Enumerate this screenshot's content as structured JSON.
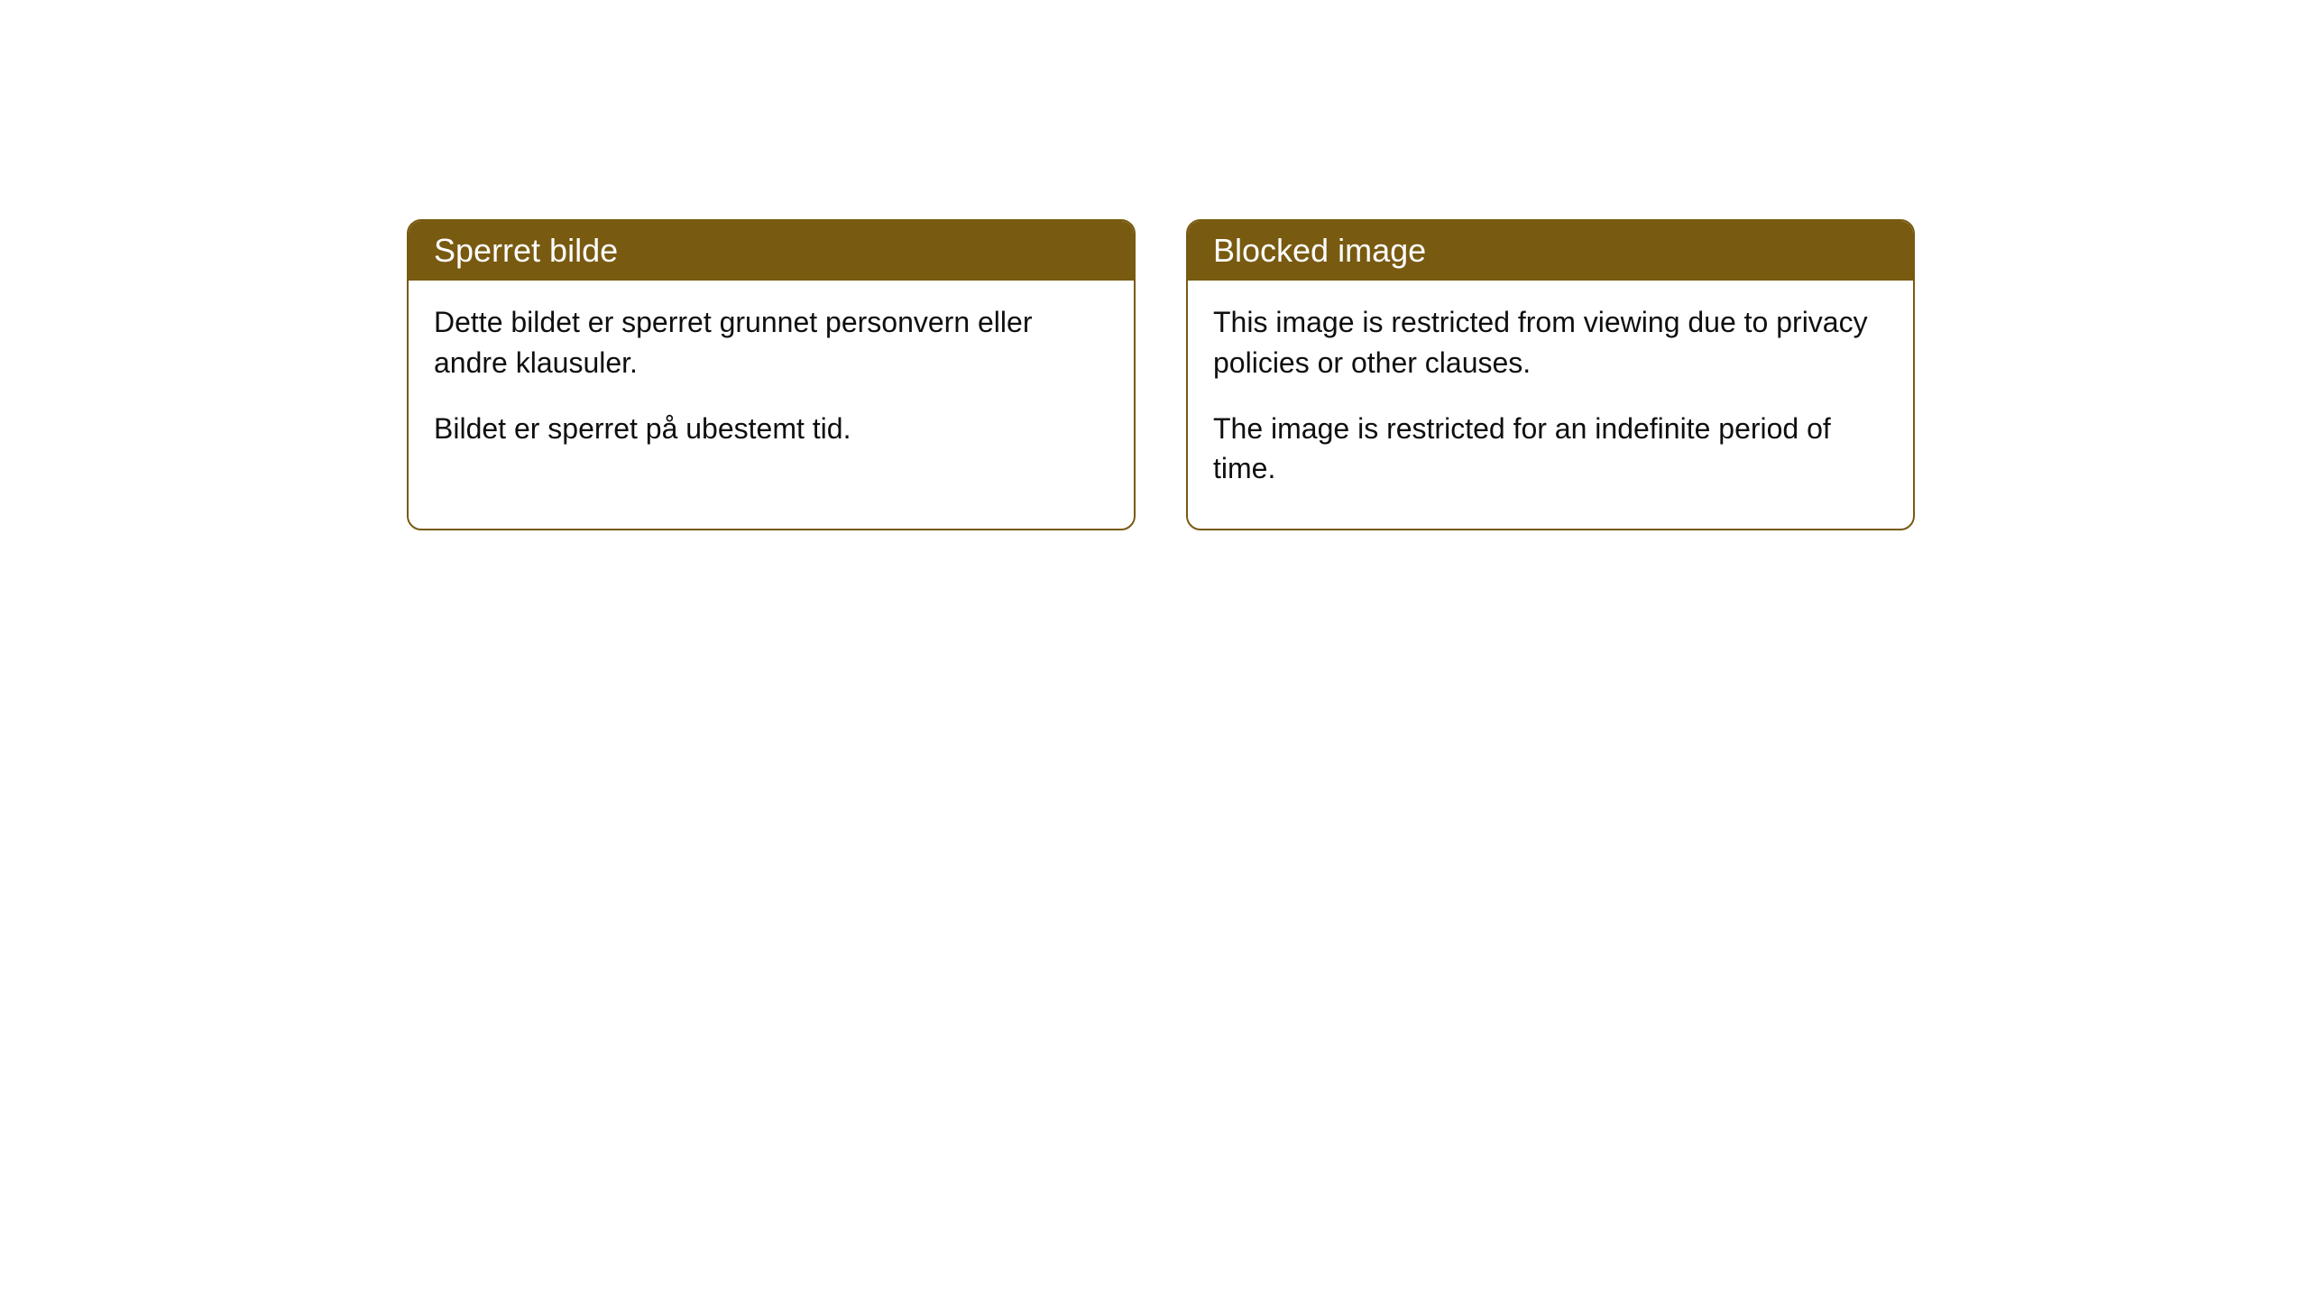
{
  "cards": [
    {
      "title": "Sperret bilde",
      "paragraph1": "Dette bildet er sperret grunnet personvern eller andre klausuler.",
      "paragraph2": "Bildet er sperret på ubestemt tid."
    },
    {
      "title": "Blocked image",
      "paragraph1": "This image is restricted from viewing due to privacy policies or other clauses.",
      "paragraph2": "The image is restricted for an indefinite period of time."
    }
  ],
  "colors": {
    "header_bg": "#785a11",
    "header_text": "#ffffff",
    "body_text": "#0f0f0f",
    "card_bg": "#ffffff",
    "border": "#785a11"
  }
}
